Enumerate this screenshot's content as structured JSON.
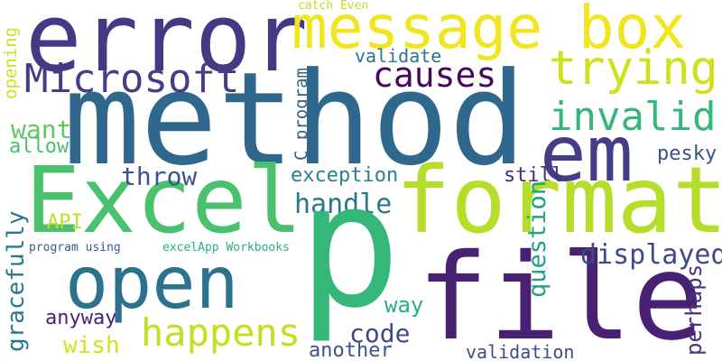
{
  "words": [
    {
      "id": "error",
      "text": "error",
      "color": "#443a83"
    },
    {
      "id": "message-box",
      "text": "message box",
      "color": "#f0e51f"
    },
    {
      "id": "method",
      "text": "method",
      "color": "#30678d"
    },
    {
      "id": "microsoft",
      "text": "Microsoft",
      "color": "#433e85"
    },
    {
      "id": "causes",
      "text": "causes",
      "color": "#46085c"
    },
    {
      "id": "trying",
      "text": "trying",
      "color": "#cde11d"
    },
    {
      "id": "validate",
      "text": "validate",
      "color": "#2b758e"
    },
    {
      "id": "catch-even",
      "text": "catch Even",
      "color": "#bddf26"
    },
    {
      "id": "opening",
      "text": "opening",
      "color": "#cde11d"
    },
    {
      "id": "c-program",
      "text": "C program",
      "color": "#34608d"
    },
    {
      "id": "invalid",
      "text": "invalid",
      "color": "#35b779"
    },
    {
      "id": "em",
      "text": "em",
      "color": "#433e85"
    },
    {
      "id": "want",
      "text": "want",
      "color": "#5ec962"
    },
    {
      "id": "allow",
      "text": "allow",
      "color": "#4ac16d"
    },
    {
      "id": "excel",
      "text": "Excel",
      "color": "#4ac16d"
    },
    {
      "id": "throw",
      "text": "throw",
      "color": "#3b528b"
    },
    {
      "id": "exception",
      "text": "exception",
      "color": "#26828e"
    },
    {
      "id": "still",
      "text": "still",
      "color": "#472d7b"
    },
    {
      "id": "pesky",
      "text": "pesky",
      "color": "#3b528b"
    },
    {
      "id": "format",
      "text": "format",
      "color": "#b5de2b"
    },
    {
      "id": "handle",
      "text": "handle",
      "color": "#2a788e"
    },
    {
      "id": "question",
      "text": "question",
      "color": "#20a386"
    },
    {
      "id": "gracefully",
      "text": "gracefully",
      "color": "#2a788e"
    },
    {
      "id": "api",
      "text": "API",
      "color": "#bddf26"
    },
    {
      "id": "p",
      "text": "p",
      "color": "#35b779"
    },
    {
      "id": "program-using",
      "text": "program using",
      "color": "#365c8d"
    },
    {
      "id": "excelapp-workbooks",
      "text": "excelApp Workbooks",
      "color": "#29af7f"
    },
    {
      "id": "open",
      "text": "open",
      "color": "#2c728e"
    },
    {
      "id": "file",
      "text": "file",
      "color": "#482173"
    },
    {
      "id": "displayed",
      "text": "displayed",
      "color": "#3e4989"
    },
    {
      "id": "perhaps",
      "text": "perhaps",
      "color": "#46337f"
    },
    {
      "id": "way",
      "text": "way",
      "color": "#29af7f"
    },
    {
      "id": "anyway",
      "text": "anyway",
      "color": "#482475"
    },
    {
      "id": "happens",
      "text": "happens",
      "color": "#c2df23"
    },
    {
      "id": "code",
      "text": "code",
      "color": "#3e4989"
    },
    {
      "id": "wish",
      "text": "wish",
      "color": "#d2e21b"
    },
    {
      "id": "another",
      "text": "another",
      "color": "#3b528b"
    },
    {
      "id": "validation",
      "text": "validation",
      "color": "#3e4c8a"
    }
  ]
}
